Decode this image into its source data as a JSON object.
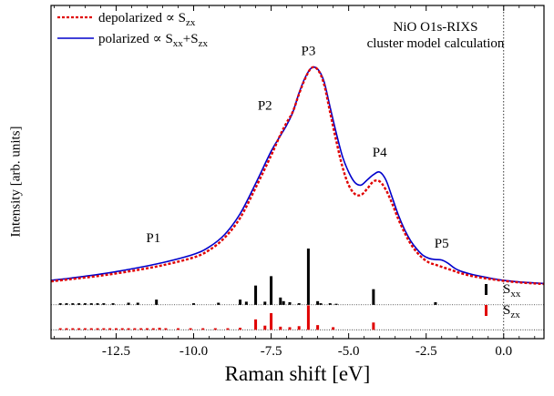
{
  "chart_data": {
    "type": "line",
    "annotation": [
      "NiO O1s-RIXS",
      "cluster model calculation"
    ],
    "xlabel": "Raman shift [eV]",
    "ylabel": "Intensity [arb. units]",
    "xlim": [
      -14.6,
      1.3
    ],
    "ylim": [
      -1.0,
      5.4
    ],
    "grid": false,
    "legend_position": "top-left",
    "x_ticks": [
      -12.5,
      -10.0,
      -7.5,
      -5.0,
      -2.5,
      0.0
    ],
    "x_tick_labels": [
      "-12.5",
      "-10.0",
      "-7.5",
      "-5.0",
      "-2.5",
      "0.0"
    ],
    "vertical_reference_line": 0.0,
    "colors": {
      "polarized": "#0000cc",
      "depolarized": "#e00000",
      "sxx_bars": "#000000",
      "szx_bars": "#e00000"
    },
    "series": [
      {
        "name": "polarized",
        "legend_main": "polarized ∝ S",
        "legend_sub": "xx",
        "legend_mid": "+S",
        "legend_sub2": "zx",
        "style": "solid",
        "x": [
          -14.6,
          -14.0,
          -13.0,
          -12.0,
          -11.0,
          -10.0,
          -9.5,
          -9.0,
          -8.5,
          -8.0,
          -7.5,
          -7.2,
          -7.0,
          -6.8,
          -6.6,
          -6.4,
          -6.2,
          -6.0,
          -5.8,
          -5.6,
          -5.4,
          -5.2,
          -5.0,
          -4.8,
          -4.6,
          -4.4,
          -4.2,
          -4.0,
          -3.8,
          -3.6,
          -3.4,
          -3.2,
          -3.0,
          -2.8,
          -2.6,
          -2.4,
          -2.2,
          -2.0,
          -1.8,
          -1.6,
          -1.4,
          -1.0,
          -0.5,
          0.0,
          0.5,
          1.0,
          1.3
        ],
        "y": [
          0.12,
          0.16,
          0.24,
          0.34,
          0.46,
          0.62,
          0.76,
          1.0,
          1.4,
          1.98,
          2.6,
          2.9,
          3.1,
          3.35,
          3.72,
          4.02,
          4.2,
          4.18,
          3.95,
          3.45,
          2.95,
          2.5,
          2.2,
          2.0,
          1.95,
          2.05,
          2.15,
          2.2,
          2.05,
          1.72,
          1.38,
          1.1,
          0.88,
          0.72,
          0.6,
          0.54,
          0.52,
          0.51,
          0.45,
          0.36,
          0.3,
          0.23,
          0.17,
          0.12,
          0.09,
          0.07,
          0.06
        ]
      },
      {
        "name": "depolarized",
        "legend_main": "depolarized ∝ S",
        "legend_sub": "zx",
        "style": "dotted",
        "x": [
          -14.6,
          -14.0,
          -13.0,
          -12.0,
          -11.0,
          -10.0,
          -9.5,
          -9.0,
          -8.5,
          -8.0,
          -7.5,
          -7.2,
          -7.0,
          -6.8,
          -6.6,
          -6.4,
          -6.2,
          -6.0,
          -5.8,
          -5.6,
          -5.4,
          -5.2,
          -5.0,
          -4.8,
          -4.6,
          -4.4,
          -4.2,
          -4.0,
          -3.8,
          -3.6,
          -3.4,
          -3.2,
          -3.0,
          -2.8,
          -2.6,
          -2.4,
          -2.2,
          -2.0,
          -1.8,
          -1.6,
          -1.4,
          -1.0,
          -0.5,
          0.0,
          0.5,
          1.0,
          1.3
        ],
        "y": [
          0.1,
          0.14,
          0.21,
          0.3,
          0.41,
          0.56,
          0.7,
          0.94,
          1.32,
          1.9,
          2.52,
          2.92,
          3.15,
          3.36,
          3.7,
          4.0,
          4.2,
          4.17,
          3.9,
          3.35,
          2.8,
          2.3,
          1.95,
          1.78,
          1.76,
          1.88,
          2.02,
          2.02,
          1.86,
          1.6,
          1.3,
          1.04,
          0.82,
          0.66,
          0.54,
          0.46,
          0.42,
          0.38,
          0.34,
          0.3,
          0.26,
          0.2,
          0.15,
          0.11,
          0.08,
          0.06,
          0.05
        ]
      }
    ],
    "sticks": [
      {
        "name": "Sxx",
        "legend_main": "S",
        "legend_sub": "xx",
        "baseline": -0.35,
        "x": [
          -14.3,
          -14.1,
          -13.9,
          -13.7,
          -13.5,
          -13.3,
          -13.1,
          -12.9,
          -12.6,
          -12.1,
          -11.8,
          -11.2,
          -10.0,
          -9.2,
          -8.5,
          -8.3,
          -8.0,
          -7.7,
          -7.5,
          -7.2,
          -7.1,
          -6.9,
          -6.6,
          -6.3,
          -6.0,
          -5.9,
          -5.6,
          -5.4,
          -4.2,
          -2.2
        ],
        "heights": [
          0.03,
          0.03,
          0.03,
          0.03,
          0.03,
          0.03,
          0.03,
          0.03,
          0.03,
          0.04,
          0.04,
          0.1,
          0.03,
          0.04,
          0.1,
          0.06,
          0.37,
          0.06,
          0.55,
          0.14,
          0.07,
          0.05,
          0.03,
          1.08,
          0.07,
          0.03,
          0.03,
          0.02,
          0.3,
          0.05
        ]
      },
      {
        "name": "Szx",
        "legend_main": "S",
        "legend_sub": "zx",
        "baseline": -0.83,
        "x": [
          -14.3,
          -14.1,
          -13.9,
          -13.7,
          -13.5,
          -13.3,
          -13.1,
          -12.9,
          -12.7,
          -12.5,
          -12.3,
          -12.1,
          -11.9,
          -11.7,
          -11.5,
          -11.3,
          -11.1,
          -10.9,
          -10.5,
          -10.1,
          -9.7,
          -9.3,
          -8.9,
          -8.5,
          -8.0,
          -7.7,
          -7.5,
          -7.2,
          -6.9,
          -6.6,
          -6.3,
          -6.0,
          -5.5,
          -4.2
        ],
        "heights": [
          0.03,
          0.03,
          0.03,
          0.03,
          0.03,
          0.03,
          0.03,
          0.03,
          0.03,
          0.03,
          0.03,
          0.03,
          0.03,
          0.03,
          0.03,
          0.03,
          0.04,
          0.03,
          0.03,
          0.03,
          0.03,
          0.03,
          0.03,
          0.04,
          0.2,
          0.08,
          0.32,
          0.06,
          0.05,
          0.07,
          0.47,
          0.09,
          0.05,
          0.14
        ]
      }
    ],
    "peak_labels": [
      {
        "label": "P1",
        "x": -11.3,
        "y": 0.85
      },
      {
        "label": "P2",
        "x": -7.7,
        "y": 3.4
      },
      {
        "label": "P3",
        "x": -6.3,
        "y": 4.45
      },
      {
        "label": "P4",
        "x": -4.0,
        "y": 2.5
      },
      {
        "label": "P5",
        "x": -2.0,
        "y": 0.75
      }
    ]
  }
}
